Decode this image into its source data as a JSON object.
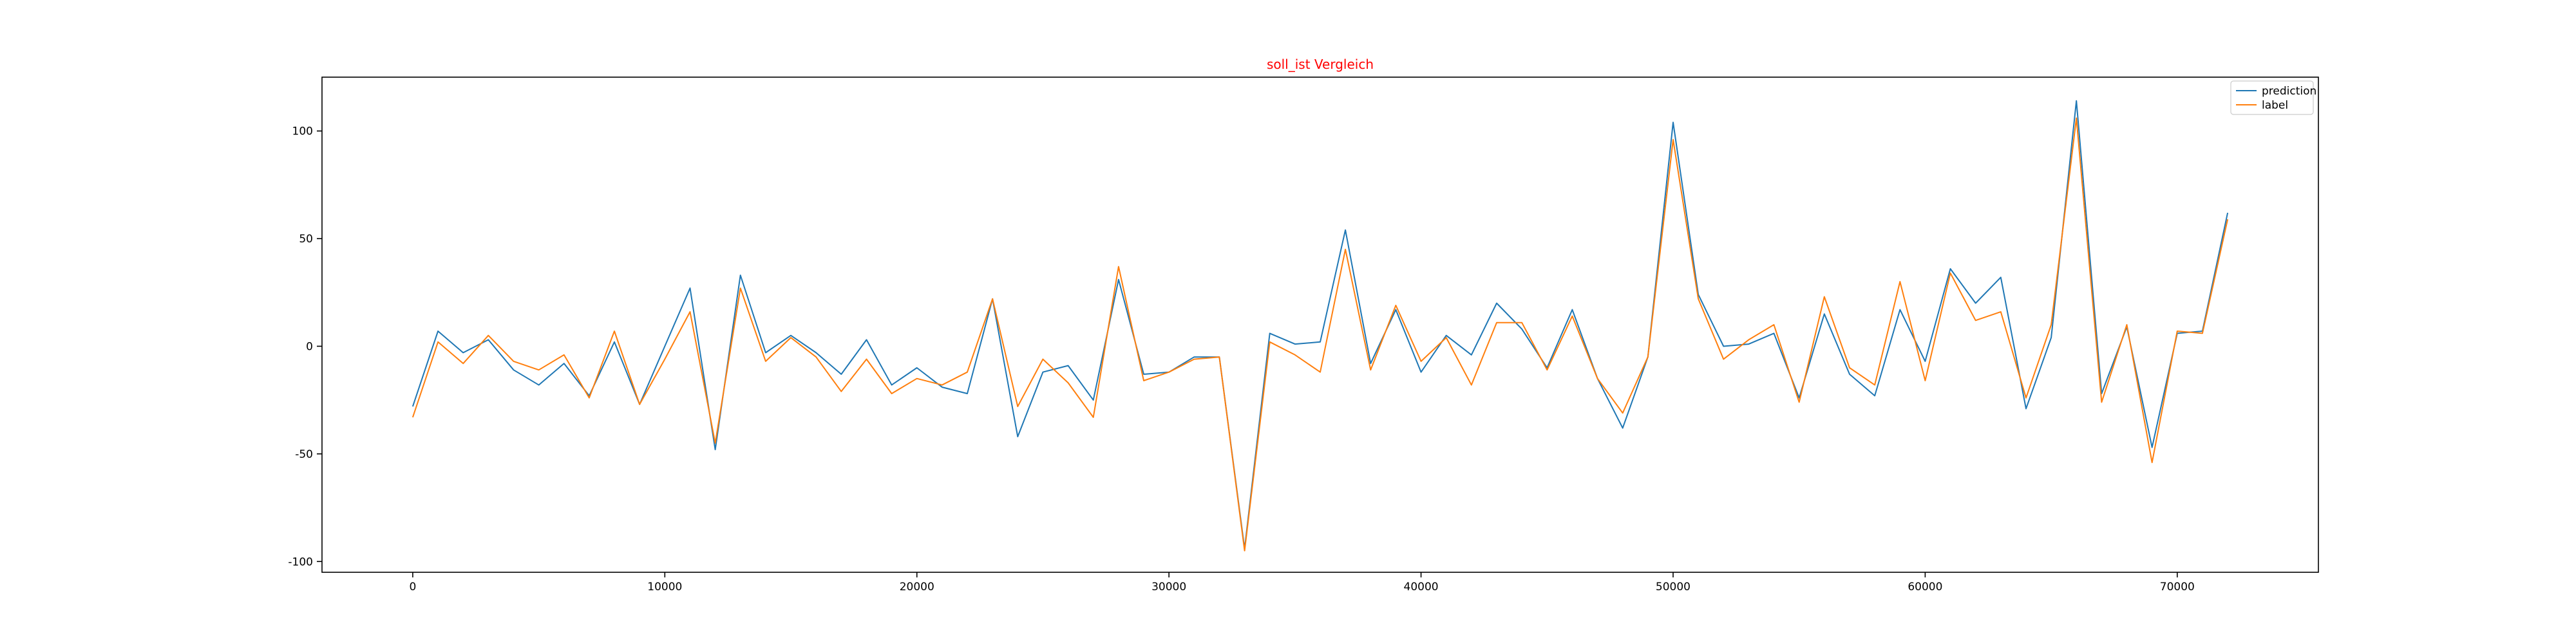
{
  "chart_data": {
    "type": "line",
    "title": "soll_ist Vergleich",
    "title_color": "#ff0000",
    "xlabel": "",
    "ylabel": "",
    "xlim": [
      -3600,
      75600
    ],
    "ylim": [
      -105,
      125
    ],
    "x_ticks": [
      0,
      10000,
      20000,
      30000,
      40000,
      50000,
      60000,
      70000
    ],
    "y_ticks": [
      -100,
      -50,
      0,
      50,
      100
    ],
    "grid": false,
    "legend_position": "top-right",
    "x": [
      0,
      1000,
      2000,
      3000,
      4000,
      5000,
      6000,
      7000,
      8000,
      9000,
      10000,
      11000,
      12000,
      13000,
      14000,
      15000,
      16000,
      17000,
      18000,
      19000,
      20000,
      21000,
      22000,
      23000,
      24000,
      25000,
      26000,
      27000,
      28000,
      29000,
      30000,
      31000,
      32000,
      33000,
      34000,
      35000,
      36000,
      37000,
      38000,
      39000,
      40000,
      41000,
      42000,
      43000,
      44000,
      45000,
      46000,
      47000,
      48000,
      49000,
      50000,
      51000,
      52000,
      53000,
      54000,
      55000,
      56000,
      57000,
      58000,
      59000,
      60000,
      61000,
      62000,
      63000,
      64000,
      65000,
      66000,
      67000,
      68000,
      69000,
      70000,
      71000,
      72000
    ],
    "series": [
      {
        "name": "prediction",
        "color": "#1f77b4",
        "values": [
          -28,
          7,
          -3,
          3,
          -11,
          -18,
          -8,
          -23,
          2,
          -27,
          0,
          27,
          -48,
          33,
          -3,
          5,
          -3,
          -13,
          3,
          -18,
          -10,
          -19,
          -22,
          22,
          -42,
          -12,
          -9,
          -25,
          31,
          -13,
          -12,
          -5,
          -5,
          -94,
          6,
          1,
          2,
          54,
          -8,
          17,
          -12,
          5,
          -4,
          20,
          8,
          -10,
          17,
          -15,
          -38,
          -5,
          104,
          24,
          0,
          1,
          6,
          -24,
          15,
          -13,
          -23,
          17,
          -7,
          36,
          20,
          32,
          -29,
          4,
          114,
          -22,
          9,
          -47,
          6,
          7,
          62
        ]
      },
      {
        "name": "label",
        "color": "#ff7f0e",
        "values": [
          -33,
          2,
          -8,
          5,
          -7,
          -11,
          -4,
          -24,
          7,
          -27,
          -6,
          16,
          -45,
          27,
          -7,
          4,
          -5,
          -21,
          -6,
          -22,
          -15,
          -18,
          -12,
          22,
          -28,
          -6,
          -17,
          -33,
          37,
          -16,
          -12,
          -6,
          -5,
          -95,
          2,
          -4,
          -12,
          45,
          -11,
          19,
          -7,
          4,
          -18,
          11,
          11,
          -11,
          14,
          -15,
          -31,
          -5,
          96,
          22,
          -6,
          3,
          10,
          -26,
          23,
          -10,
          -18,
          30,
          -16,
          34,
          12,
          16,
          -24,
          10,
          106,
          -26,
          10,
          -54,
          7,
          6,
          59
        ]
      }
    ]
  }
}
